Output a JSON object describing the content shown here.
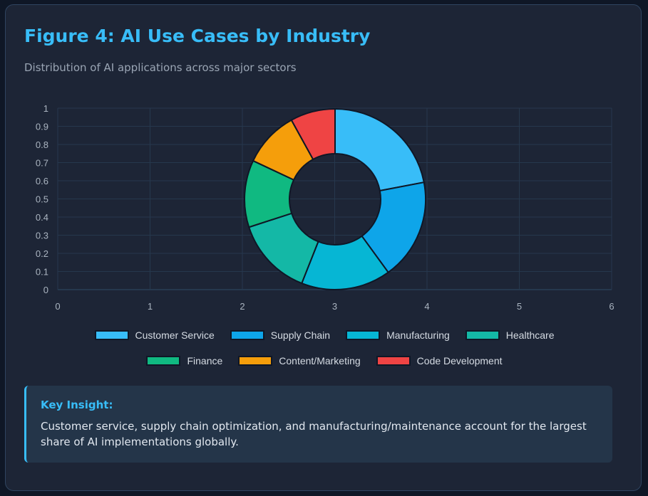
{
  "header": {
    "title": "Figure 4: AI Use Cases by Industry",
    "subtitle": "Distribution of AI applications across major sectors"
  },
  "chart_data": {
    "type": "pie",
    "variant": "doughnut",
    "categories": [
      "Customer Service",
      "Supply Chain",
      "Manufacturing",
      "Healthcare",
      "Finance",
      "Content/Marketing",
      "Code Development"
    ],
    "values": [
      22,
      18,
      16,
      14,
      12,
      10,
      8
    ],
    "colors": [
      "#38bdf8",
      "#0ea5e9",
      "#06b6d4",
      "#14b8a6",
      "#10b981",
      "#f59e0b",
      "#ef4444"
    ],
    "xlim": [
      0,
      6
    ],
    "ylim": [
      0,
      1
    ],
    "x_ticks": [
      "0",
      "1",
      "2",
      "3",
      "4",
      "5",
      "6"
    ],
    "y_ticks": [
      "0",
      "0.1",
      "0.2",
      "0.3",
      "0.4",
      "0.5",
      "0.6",
      "0.7",
      "0.8",
      "0.9",
      "1"
    ],
    "grid": true,
    "legend_position": "bottom"
  },
  "insight": {
    "title": "Key Insight:",
    "text": "Customer service, supply chain optimization, and manufacturing/maintenance account for the largest share of AI implementations globally."
  }
}
